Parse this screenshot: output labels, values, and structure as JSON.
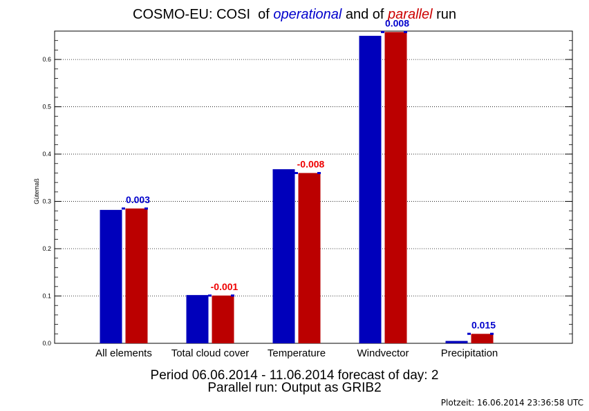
{
  "title": {
    "prefix": "COSMO-EU: COSI  of ",
    "operational": "operational",
    "middle": " and of ",
    "parallel": "parallel",
    "suffix": " run"
  },
  "footer": {
    "line1": "Period 06.06.2014 - 11.06.2014 forecast of day: 2",
    "line2": "Parallel run: Output as GRIB2",
    "plotzeit": "Plotzeit: 16.06.2014 23:36:58 UTC"
  },
  "colors": {
    "operational": "#0000bb",
    "parallel": "#bb0000",
    "diff_positive": "#0000cc",
    "diff_negative": "#ee0000"
  },
  "chart_data": {
    "type": "bar",
    "title": "COSMO-EU: COSI  of operational and of parallel run",
    "ylabel": "Gütemaß",
    "xlabel": "",
    "ylim": [
      0,
      0.66
    ],
    "yticks": [
      "0.0",
      "0.1",
      "0.2",
      "0.3",
      "0.4",
      "0.5",
      "0.6"
    ],
    "grid": true,
    "categories": [
      "All elements",
      "Total cloud cover",
      "Temperature",
      "Windvector",
      "Precipitation"
    ],
    "series": [
      {
        "name": "operational",
        "values": [
          0.282,
          0.102,
          0.368,
          0.65,
          0.005
        ]
      },
      {
        "name": "parallel",
        "values": [
          0.285,
          0.101,
          0.36,
          0.658,
          0.02
        ]
      }
    ],
    "annotations": [
      "0.003",
      "-0.001",
      "-0.008",
      "0.008",
      "0.015"
    ]
  }
}
